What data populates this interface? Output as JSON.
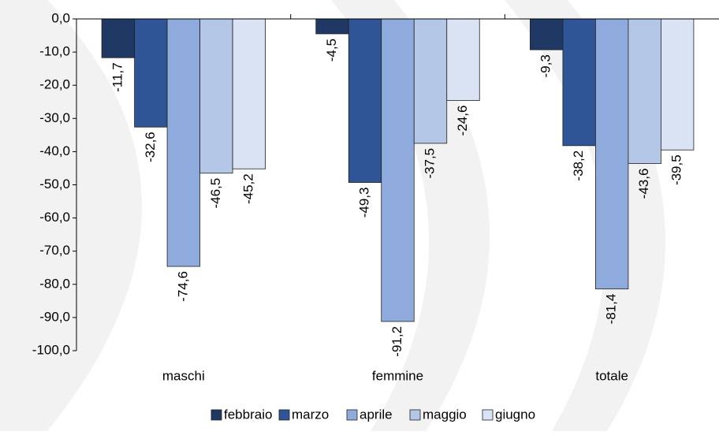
{
  "chart_data": {
    "type": "bar",
    "categories": [
      "maschi",
      "femmine",
      "totale"
    ],
    "series": [
      {
        "name": "febbraio",
        "color": "#1f3864",
        "values": [
          -11.7,
          -4.5,
          -9.3
        ],
        "value_labels": [
          "-11,7",
          "-4,5",
          "-9,3"
        ]
      },
      {
        "name": "marzo",
        "color": "#2f5597",
        "values": [
          -32.6,
          -49.3,
          -38.2
        ],
        "value_labels": [
          "-32,6",
          "-49,3",
          "-38,2"
        ]
      },
      {
        "name": "aprile",
        "color": "#8faadc",
        "values": [
          -74.6,
          -91.2,
          -81.4
        ],
        "value_labels": [
          "-74,6",
          "-91,2",
          "-81,4"
        ]
      },
      {
        "name": "maggio",
        "color": "#b4c7e7",
        "values": [
          -46.5,
          -37.5,
          -43.6
        ],
        "value_labels": [
          "-46,5",
          "-37,5",
          "-43,6"
        ]
      },
      {
        "name": "giugno",
        "color": "#dae3f3",
        "values": [
          -45.2,
          -24.6,
          -39.5
        ],
        "value_labels": [
          "-45,2",
          "-24,6",
          "-39,5"
        ]
      }
    ],
    "ylim": [
      -100,
      0
    ],
    "yticks": [
      {
        "value": 0,
        "label": "0,0"
      },
      {
        "value": -10,
        "label": "-10,0"
      },
      {
        "value": -20,
        "label": "-20,0"
      },
      {
        "value": -30,
        "label": "-30,0"
      },
      {
        "value": -40,
        "label": "-40,0"
      },
      {
        "value": -50,
        "label": "-50,0"
      },
      {
        "value": -60,
        "label": "-60,0"
      },
      {
        "value": -70,
        "label": "-70,0"
      },
      {
        "value": -80,
        "label": "-80,0"
      },
      {
        "value": -90,
        "label": "-90,0"
      },
      {
        "value": -100,
        "label": "-100,0"
      }
    ],
    "legend": "bottom"
  }
}
